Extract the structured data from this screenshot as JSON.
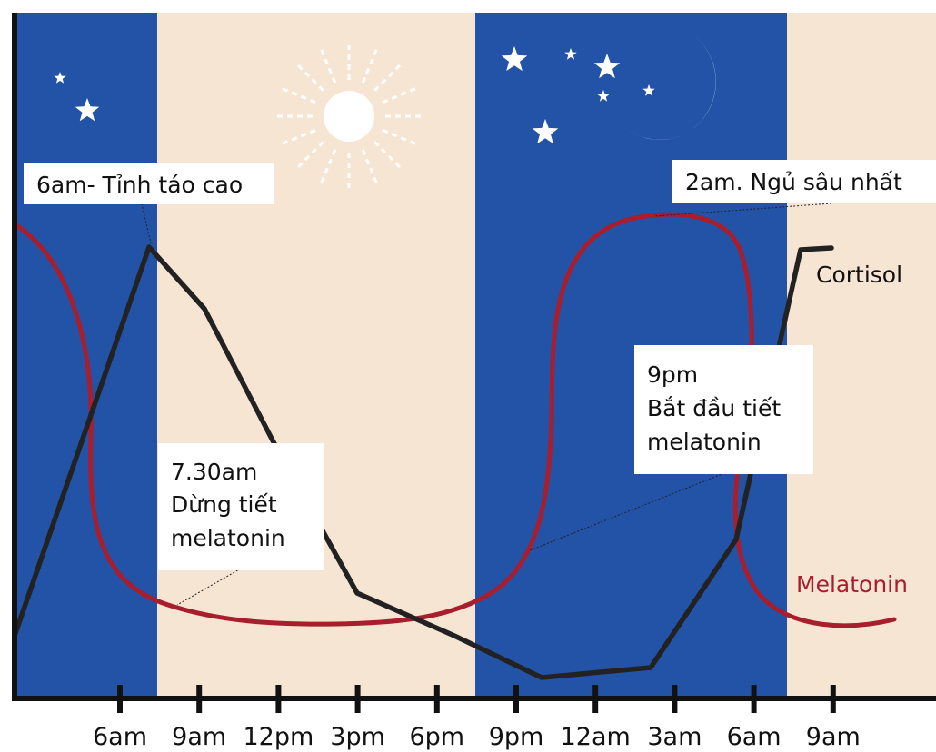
{
  "chart_data": {
    "type": "line",
    "title": "",
    "xlabel": "",
    "ylabel": "",
    "x_ticks": [
      "6am",
      "9am",
      "12pm",
      "3pm",
      "6pm",
      "9pm",
      "12am",
      "3am",
      "6am",
      "9am"
    ],
    "grid": false,
    "legend": "inline labels at line ends",
    "background_bands": [
      {
        "from": "3am",
        "to": "7.30am",
        "kind": "night",
        "color": "#2253a6"
      },
      {
        "from": "7.30am",
        "to": "7.30pm",
        "kind": "day",
        "color": "#f7e5d3"
      },
      {
        "from": "7.30pm",
        "to": "7.30am",
        "kind": "night",
        "color": "#2253a6"
      },
      {
        "from": "7.30am",
        "to": "11am",
        "kind": "day",
        "color": "#f7e5d3"
      }
    ],
    "series": [
      {
        "name": "Cortisol",
        "color": "#222222",
        "points": [
          {
            "x": "3am",
            "y": 0.07
          },
          {
            "x": "7am",
            "y": 0.99
          },
          {
            "x": "9am",
            "y": 0.79
          },
          {
            "x": "12pm",
            "y": 0.48
          },
          {
            "x": "4pm",
            "y": 0.24
          },
          {
            "x": "6pm",
            "y": 0.16
          },
          {
            "x": "11pm",
            "y": 0.04
          },
          {
            "x": "3.30am",
            "y": 0.07
          },
          {
            "x": "6.15am",
            "y": 0.35
          },
          {
            "x": "8am",
            "y": 1.0
          },
          {
            "x": "9am",
            "y": 1.0
          }
        ]
      },
      {
        "name": "Melatonin",
        "color": "#a81e2d",
        "points": [
          {
            "x": "3am",
            "y": 0.81
          },
          {
            "x": "5am",
            "y": 0.55
          },
          {
            "x": "6am",
            "y": 0.22
          },
          {
            "x": "7.30am",
            "y": 0.12
          },
          {
            "x": "12pm",
            "y": 0.09
          },
          {
            "x": "3pm",
            "y": 0.09
          },
          {
            "x": "6pm",
            "y": 0.13
          },
          {
            "x": "9pm",
            "y": 0.4
          },
          {
            "x": "10pm",
            "y": 0.98
          },
          {
            "x": "2am",
            "y": 0.99
          },
          {
            "x": "5am",
            "y": 0.45
          },
          {
            "x": "6am",
            "y": 0.2
          },
          {
            "x": "8am",
            "y": 0.1
          },
          {
            "x": "11am",
            "y": 0.1
          }
        ]
      }
    ],
    "annotations": [
      {
        "text": [
          "6am- Tỉnh táo cao"
        ]
      },
      {
        "text": [
          "7.30am",
          "Dừng tiết",
          "melatonin"
        ]
      },
      {
        "text": [
          "9pm",
          "Bắt đầu tiết",
          "melatonin"
        ]
      },
      {
        "text": [
          "2am. Ngủ sâu nhất"
        ]
      }
    ]
  }
}
